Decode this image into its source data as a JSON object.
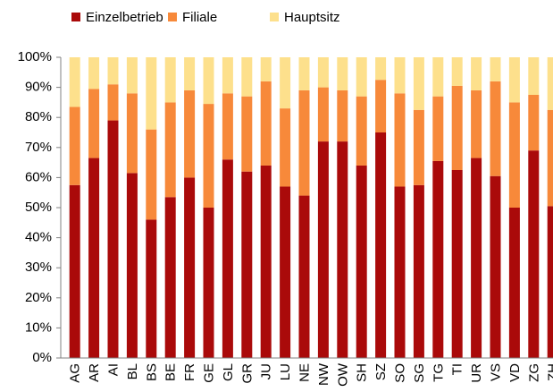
{
  "chart_data": {
    "type": "stacked_bar",
    "categories": [
      "AG",
      "AR",
      "AI",
      "BL",
      "BS",
      "BE",
      "FR",
      "GE",
      "GL",
      "GR",
      "JU",
      "LU",
      "NE",
      "NW",
      "OW",
      "SH",
      "SZ",
      "SO",
      "SG",
      "TG",
      "TI",
      "UR",
      "VS",
      "VD",
      "ZG",
      "ZH"
    ],
    "series": [
      {
        "name": "Einzelbetrieb",
        "color": "#aa0a0a",
        "values": [
          57.5,
          66.5,
          79,
          61.5,
          46,
          53.5,
          60,
          50,
          66,
          62,
          64,
          57,
          54,
          72,
          72,
          64,
          75,
          57,
          57.5,
          65.5,
          62.5,
          66.5,
          60.5,
          50,
          69,
          50.5
        ]
      },
      {
        "name": "Filiale",
        "color": "#f7893a",
        "values": [
          26,
          23,
          12,
          26.5,
          30,
          31.5,
          29,
          34.5,
          22,
          25,
          28,
          26,
          35,
          18,
          17,
          23,
          17.5,
          31,
          25,
          21.5,
          28,
          22.5,
          31.5,
          35,
          18.5,
          32
        ]
      },
      {
        "name": "Hauptsitz",
        "color": "#fde08c",
        "values": [
          16.5,
          10.5,
          9,
          12,
          24,
          15,
          11,
          15.5,
          12,
          13,
          8,
          17,
          11,
          10,
          11,
          13,
          7.5,
          12,
          17.5,
          13,
          9.5,
          11,
          8,
          15,
          12.5,
          17.5
        ]
      }
    ],
    "ylim": [
      0,
      100
    ],
    "yticks": [
      {
        "value": 0,
        "label": "0%"
      },
      {
        "value": 10,
        "label": "10%"
      },
      {
        "value": 20,
        "label": "20%"
      },
      {
        "value": 30,
        "label": "30%"
      },
      {
        "value": 40,
        "label": "40%"
      },
      {
        "value": 50,
        "label": "50%"
      },
      {
        "value": 60,
        "label": "60%"
      },
      {
        "value": 70,
        "label": "70%"
      },
      {
        "value": 80,
        "label": "80%"
      },
      {
        "value": 90,
        "label": "90%"
      },
      {
        "value": 100,
        "label": "100%"
      }
    ],
    "legend": "top"
  }
}
